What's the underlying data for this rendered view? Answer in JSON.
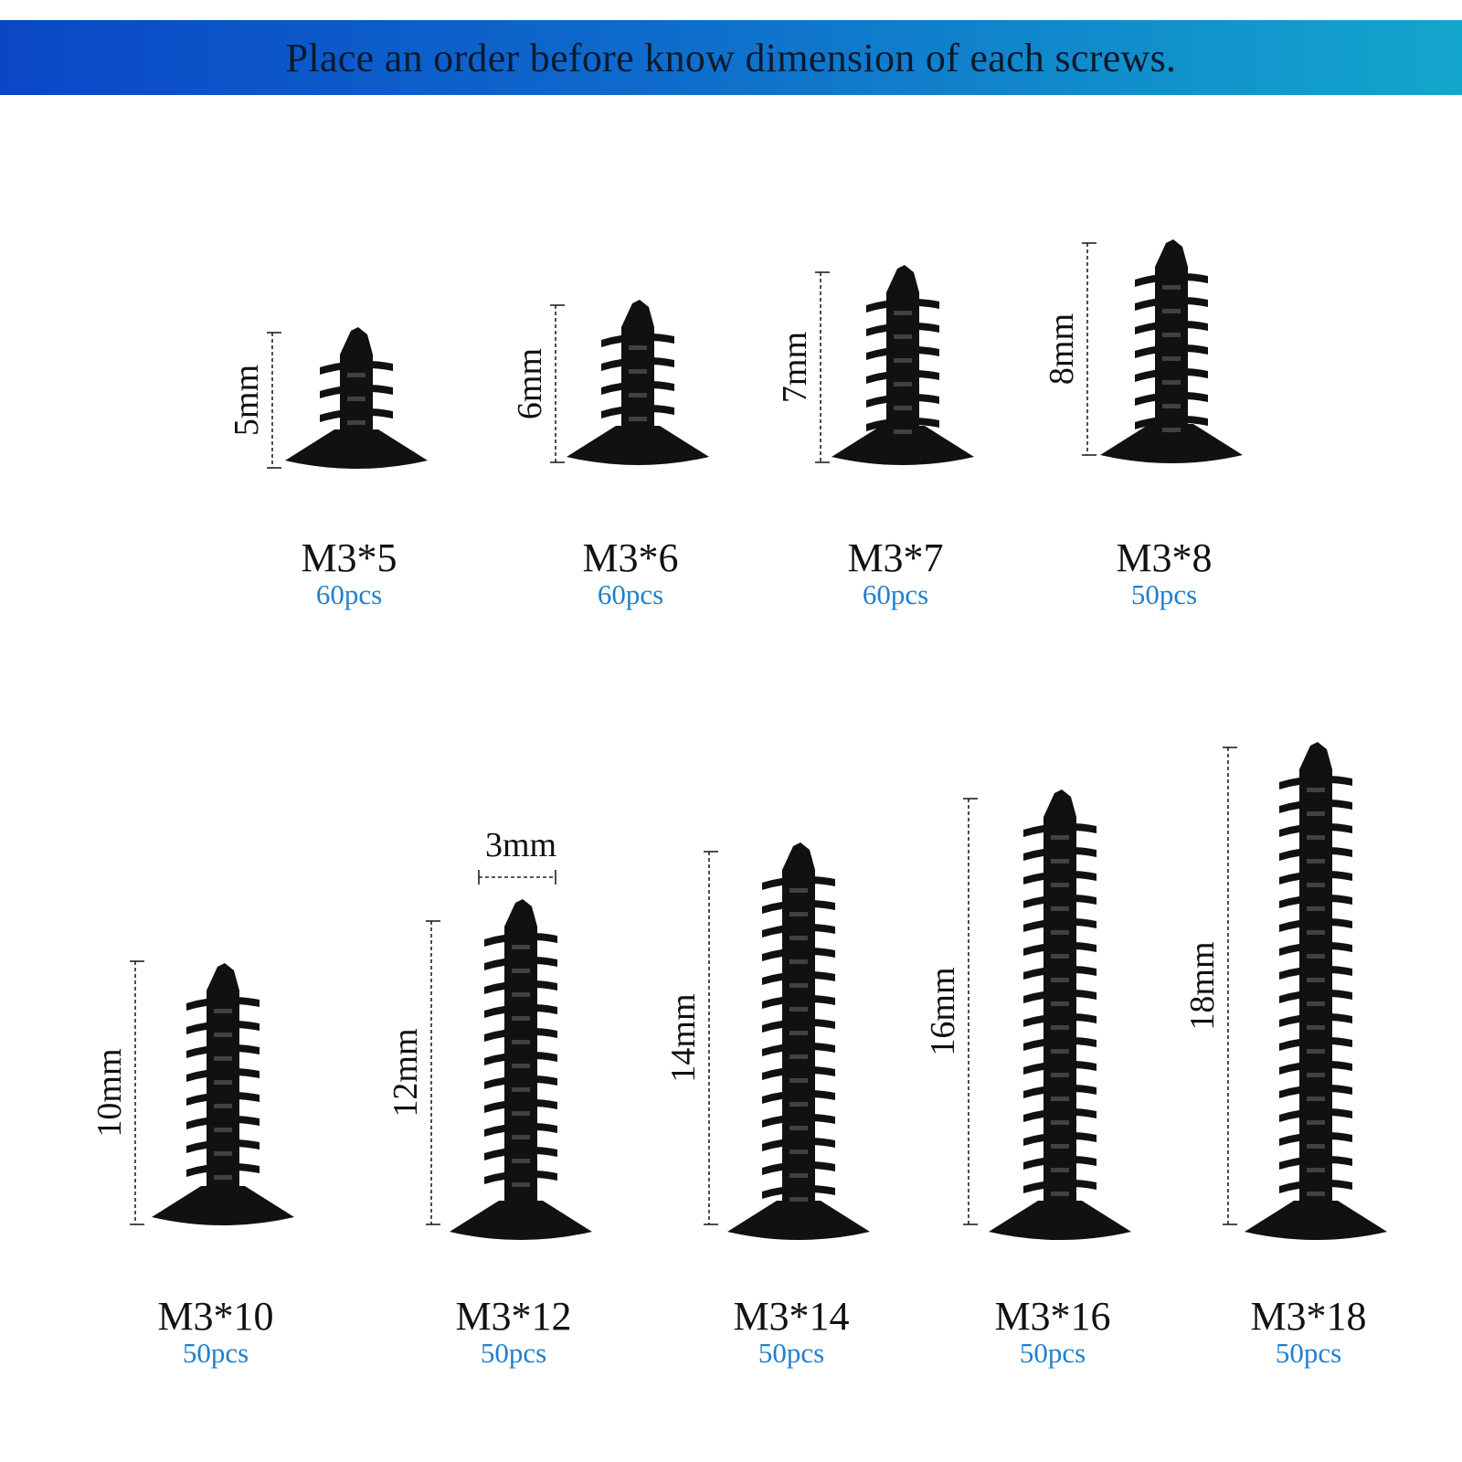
{
  "banner": {
    "text": "Place an order before know dimension of each screws.",
    "color": "#0d1a2e"
  },
  "colors": {
    "qty": "#1f7fcf",
    "screw": "#111111"
  },
  "screws": [
    {
      "name": "M3*5",
      "qty": "60pcs",
      "dim": "5mm"
    },
    {
      "name": "M3*6",
      "qty": "60pcs",
      "dim": "6mm"
    },
    {
      "name": "M3*7",
      "qty": "60pcs",
      "dim": "7mm"
    },
    {
      "name": "M3*8",
      "qty": "50pcs",
      "dim": "8mm"
    },
    {
      "name": "M3*10",
      "qty": "50pcs",
      "dim": "10mm"
    },
    {
      "name": "M3*12",
      "qty": "50pcs",
      "dim": "12mm"
    },
    {
      "name": "M3*14",
      "qty": "50pcs",
      "dim": "14mm"
    },
    {
      "name": "M3*16",
      "qty": "50pcs",
      "dim": "16mm"
    },
    {
      "name": "M3*18",
      "qty": "50pcs",
      "dim": "18mm"
    }
  ],
  "diameter_label": "3mm"
}
